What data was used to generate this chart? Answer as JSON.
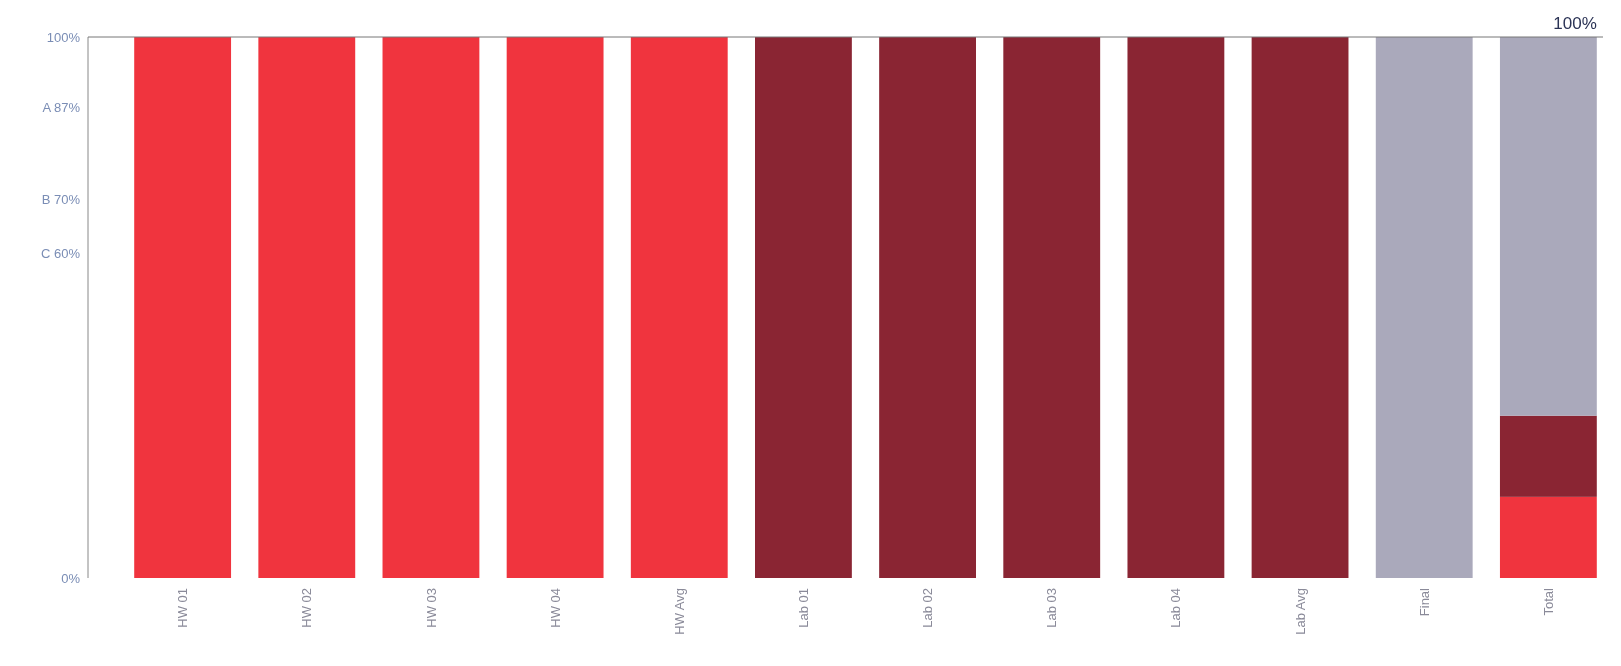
{
  "chart_data": {
    "type": "bar",
    "stacked": true,
    "categories": [
      "HW 01",
      "HW 02",
      "HW 03",
      "HW 04",
      "HW Avg",
      "Lab 01",
      "Lab 02",
      "Lab 03",
      "Lab 04",
      "Lab Avg",
      "Final",
      "Total"
    ],
    "series": [
      {
        "color": "#f0343e",
        "values": [
          100,
          100,
          100,
          100,
          100,
          null,
          null,
          null,
          null,
          null,
          null,
          15
        ]
      },
      {
        "color": "#8a2533",
        "values": [
          null,
          null,
          null,
          null,
          null,
          100,
          100,
          100,
          100,
          100,
          null,
          15
        ]
      },
      {
        "color": "#aaa9bb",
        "values": [
          null,
          null,
          null,
          null,
          null,
          null,
          null,
          null,
          null,
          null,
          100,
          70
        ]
      }
    ],
    "ylim": [
      0,
      100
    ],
    "yticks": [
      {
        "value": 0,
        "label": "0%"
      },
      {
        "value": 60,
        "label": "C 60%"
      },
      {
        "value": 70,
        "label": "B 70%"
      },
      {
        "value": 87,
        "label": "A 87%"
      },
      {
        "value": 100,
        "label": "100%"
      }
    ],
    "totals": [
      null,
      null,
      null,
      null,
      null,
      null,
      null,
      null,
      null,
      null,
      null,
      "100%"
    ],
    "grid": false
  }
}
